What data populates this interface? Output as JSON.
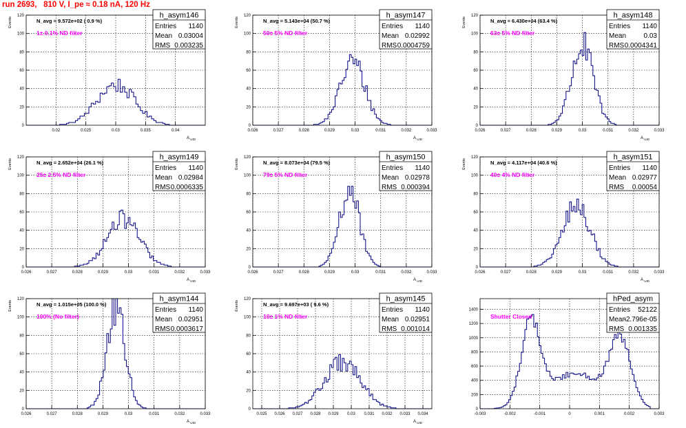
{
  "page": {
    "title": "run 2693,   810 V, I_pe ≈ 0.18 nA, 120 Hz"
  },
  "colors": {
    "title": "#ff0000",
    "histogram": "#000080",
    "annotation": "#ff00ff",
    "grid": "#000000",
    "frame": "#000000"
  },
  "chart_data": [
    {
      "type": "histogram",
      "name": "h_asym146",
      "entries": "1140",
      "mean": "0.03004",
      "rms": "0.003235",
      "navg": "N_avg = 9.572e+02 ( 0.9 %)",
      "note": "1± 0.1% ND filter",
      "xlabel": "A_UID",
      "ylabel": "Events",
      "xlim": [
        0.015,
        0.045
      ],
      "ylim": [
        0,
        120
      ],
      "xticks": [
        "0.02",
        "0.025",
        "0.03",
        "0.035",
        "0.04"
      ],
      "yticks": [
        "0",
        "20",
        "40",
        "60",
        "80",
        "100",
        "120"
      ],
      "mu": 0.03,
      "sigma": 0.0032,
      "peak": 44,
      "bins": 80
    },
    {
      "type": "histogram",
      "name": "h_asym147",
      "entries": "1140",
      "mean": "0.02992",
      "rms": "0.0004759",
      "navg": "N_avg = 5.143e+04 (50.7 %)",
      "note": "50± 5% ND filter",
      "xlabel": "A_UID",
      "ylabel": "Events",
      "xlim": [
        0.026,
        0.033
      ],
      "ylim": [
        0,
        120
      ],
      "xticks": [
        "0.026",
        "0.027",
        "0.028",
        "0.029",
        "0.03",
        "0.031",
        "0.032",
        "0.033"
      ],
      "yticks": [
        "0",
        "20",
        "40",
        "60",
        "80",
        "100",
        "120"
      ],
      "mu": 0.0299,
      "sigma": 0.00048,
      "peak": 70,
      "bins": 100
    },
    {
      "type": "histogram",
      "name": "h_asym148",
      "entries": "1140",
      "mean": "0.03",
      "rms": "0.0004341",
      "navg": "N_avg = 6.430e+04 (63.4 %)",
      "note": "63± 5% ND filter",
      "xlabel": "A_UID",
      "ylabel": "Events",
      "xlim": [
        0.026,
        0.033
      ],
      "ylim": [
        0,
        120
      ],
      "xticks": [
        "0.026",
        "0.027",
        "0.028",
        "0.029",
        "0.03",
        "0.031",
        "0.032",
        "0.033"
      ],
      "yticks": [
        "0",
        "20",
        "40",
        "60",
        "80",
        "100",
        "120"
      ],
      "mu": 0.03,
      "sigma": 0.00043,
      "peak": 86,
      "bins": 100
    },
    {
      "type": "histogram",
      "name": "h_asym149",
      "entries": "1140",
      "mean": "0.02984",
      "rms": "0.0006335",
      "navg": "N_avg = 2.652e+04 (26.1 %)",
      "note": "25± 2.5% ND filter",
      "xlabel": "A_UID",
      "ylabel": "Events",
      "xlim": [
        0.026,
        0.033
      ],
      "ylim": [
        0,
        120
      ],
      "xticks": [
        "0.026",
        "0.027",
        "0.028",
        "0.029",
        "0.03",
        "0.031",
        "0.032",
        "0.033"
      ],
      "yticks": [
        "0",
        "20",
        "40",
        "60",
        "80",
        "100",
        "120"
      ],
      "mu": 0.0298,
      "sigma": 0.00063,
      "peak": 52,
      "bins": 100
    },
    {
      "type": "histogram",
      "name": "h_asym150",
      "entries": "1140",
      "mean": "0.02978",
      "rms": "0.000394",
      "navg": "N_avg = 8.073e+04 (79.5 %)",
      "note": "79± 5% ND filter",
      "xlabel": "A_UID",
      "ylabel": "Events",
      "xlim": [
        0.026,
        0.033
      ],
      "ylim": [
        0,
        120
      ],
      "xticks": [
        "0.026",
        "0.027",
        "0.028",
        "0.029",
        "0.03",
        "0.031",
        "0.032",
        "0.033"
      ],
      "yticks": [
        "0",
        "20",
        "40",
        "60",
        "80",
        "100",
        "120"
      ],
      "mu": 0.02978,
      "sigma": 0.00039,
      "peak": 84,
      "bins": 100
    },
    {
      "type": "histogram",
      "name": "h_asym151",
      "entries": "1140",
      "mean": "0.02977",
      "rms": "0.00054",
      "navg": "N_avg = 4.117e+04 (40.6 %)",
      "note": "40± 4% ND filter",
      "xlabel": "A_UID",
      "ylabel": "Events",
      "xlim": [
        0.026,
        0.033
      ],
      "ylim": [
        0,
        120
      ],
      "xticks": [
        "0.026",
        "0.027",
        "0.028",
        "0.029",
        "0.03",
        "0.031",
        "0.032",
        "0.033"
      ],
      "yticks": [
        "0",
        "20",
        "40",
        "60",
        "80",
        "100",
        "120"
      ],
      "mu": 0.02977,
      "sigma": 0.00054,
      "peak": 66,
      "bins": 100
    },
    {
      "type": "histogram",
      "name": "h_asym144",
      "entries": "1140",
      "mean": "0.02951",
      "rms": "0.0003617",
      "navg": "N_avg = 1.015e+05 (100.0 %)",
      "note": "100% (No filter)",
      "xlabel": "A_UID",
      "ylabel": "Events",
      "xlim": [
        0.026,
        0.033
      ],
      "ylim": [
        0,
        120
      ],
      "xticks": [
        "0.026",
        "0.027",
        "0.028",
        "0.029",
        "0.03",
        "0.031",
        "0.032",
        "0.033"
      ],
      "yticks": [
        "0",
        "20",
        "40",
        "60",
        "80",
        "100",
        "120"
      ],
      "mu": 0.02951,
      "sigma": 0.00036,
      "peak": 108,
      "bins": 100
    },
    {
      "type": "histogram",
      "name": "h_asym145",
      "entries": "1140",
      "mean": "0.02951",
      "rms": "0.001014",
      "navg": "N_avg = 9.697e+03 ( 9.6 %)",
      "note": "10± 1% ND filter",
      "xlabel": "A_UID",
      "ylabel": "Events",
      "xlim": [
        0.0245,
        0.0345
      ],
      "ylim": [
        0,
        120
      ],
      "xticks": [
        "0.025",
        "0.026",
        "0.027",
        "0.028",
        "0.029",
        "0.03",
        "0.031",
        "0.032",
        "0.033",
        "0.034"
      ],
      "yticks": [
        "0",
        "20",
        "40",
        "60",
        "80",
        "100",
        "120"
      ],
      "mu": 0.02951,
      "sigma": 0.00101,
      "peak": 50,
      "bins": 100
    },
    {
      "type": "histogram",
      "name": "hPed_asym",
      "entries": "52122",
      "mean": "-2.796e-05",
      "rms": "0.001335",
      "navg": "",
      "note": "Shutter Closed",
      "xlabel": "",
      "ylabel": "",
      "xlim": [
        -0.003,
        0.003
      ],
      "ylim": [
        0,
        1550
      ],
      "xticks": [
        "-0.003",
        "-0.002",
        "-0.001",
        "0",
        "0.001",
        "0.002",
        "0.003"
      ],
      "yticks": [
        "0",
        "200",
        "400",
        "600",
        "800",
        "1000",
        "1200",
        "1400"
      ],
      "bins": 100,
      "components": [
        {
          "mu": -0.0013,
          "sigma": 0.00032,
          "amp": 1150
        },
        {
          "mu": 0.0017,
          "sigma": 0.00035,
          "amp": 900
        },
        {
          "mu": 0.0002,
          "sigma": 0.0009,
          "amp": 500
        }
      ]
    }
  ]
}
